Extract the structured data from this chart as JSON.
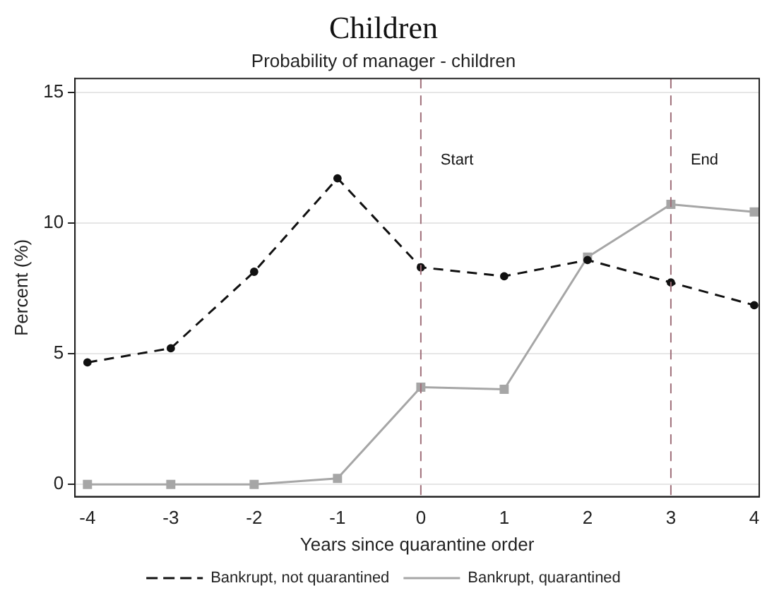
{
  "chart_data": {
    "type": "line",
    "title": "Children",
    "subtitle": "Probability of manager - children",
    "xlabel": "Years since quarantine order",
    "ylabel": "Percent (%)",
    "x": [
      -4,
      -3,
      -2,
      -1,
      0,
      1,
      2,
      3,
      4
    ],
    "series": [
      {
        "name": "Bankrupt, not quarantined",
        "color": "#111111",
        "marker": "circle",
        "line_style": "dashed",
        "values": [
          4.67,
          5.21,
          8.14,
          11.72,
          8.31,
          7.97,
          8.59,
          7.73,
          6.86
        ]
      },
      {
        "name": "Bankrupt, quarantined",
        "color": "#a6a6a6",
        "marker": "square",
        "line_style": "solid",
        "values": [
          0,
          0,
          0,
          0.23,
          3.72,
          3.64,
          8.7,
          10.72,
          10.43
        ]
      }
    ],
    "xlim": [
      -4.15,
      4.06
    ],
    "xticks": [
      -4,
      -3,
      -2,
      -1,
      0,
      1,
      2,
      3,
      4
    ],
    "ylim": [
      -0.47,
      15.54
    ],
    "yticks": [
      0,
      5,
      10,
      15
    ],
    "ref_lines": [
      {
        "axis": "x",
        "value": 0,
        "label": "Start",
        "color": "#a0707a",
        "line_style": "dashed"
      },
      {
        "axis": "x",
        "value": 3,
        "label": "End",
        "color": "#a0707a",
        "line_style": "dashed"
      }
    ],
    "grid": "y",
    "legend": "bottom"
  }
}
